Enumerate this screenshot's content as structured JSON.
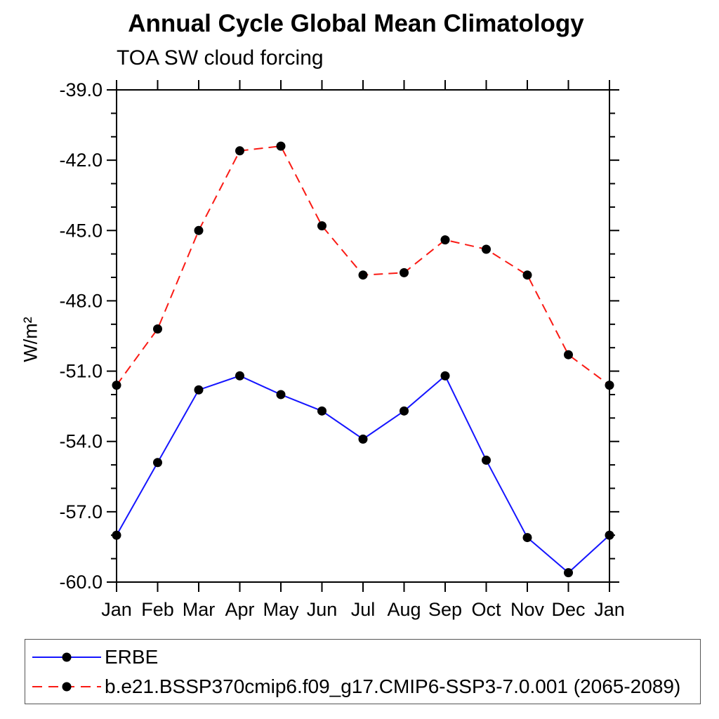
{
  "page": {
    "background": "#ffffff"
  },
  "chart": {
    "title": "Annual Cycle Global Mean Climatology",
    "subtitle": "TOA SW cloud forcing",
    "ylabel": "W/m²"
  },
  "chart_data": {
    "type": "line",
    "title": "Annual Cycle Global Mean Climatology",
    "subtitle": "TOA SW cloud forcing",
    "xlabel": "",
    "ylabel": "W/m²",
    "categories": [
      "Jan",
      "Feb",
      "Mar",
      "Apr",
      "May",
      "Jun",
      "Jul",
      "Aug",
      "Sep",
      "Oct",
      "Nov",
      "Dec",
      "Jan"
    ],
    "ylim": [
      -60,
      -39
    ],
    "y_major_tick_step": 3,
    "y_minor_tick_step": 1,
    "y_major_tick_labels": [
      "-39.0",
      "-42.0",
      "-45.0",
      "-48.0",
      "-51.0",
      "-54.0",
      "-57.0",
      "-60.0"
    ],
    "grid": false,
    "legend_position": "bottom-left",
    "axis_color": "#000000",
    "marker": {
      "shape": "circle",
      "color": "#000000",
      "radius": 6.5
    },
    "series": [
      {
        "name": "ERBE",
        "color": "#1515ff",
        "line_style": "solid",
        "values": [
          -58.0,
          -54.9,
          -51.8,
          -51.2,
          -52.0,
          -52.7,
          -53.9,
          -52.7,
          -51.2,
          -54.8,
          -58.1,
          -59.6,
          -58.0
        ]
      },
      {
        "name": "b.e21.BSSP370cmip6.f09_g17.CMIP6-SSP3-7.0.001 (2065-2089)",
        "color": "#fa1a14",
        "line_style": "dashed",
        "values": [
          -51.6,
          -49.2,
          -45.0,
          -41.6,
          -41.4,
          -44.8,
          -46.9,
          -46.8,
          -45.4,
          -45.8,
          -46.9,
          -50.3,
          -51.6
        ]
      }
    ]
  }
}
